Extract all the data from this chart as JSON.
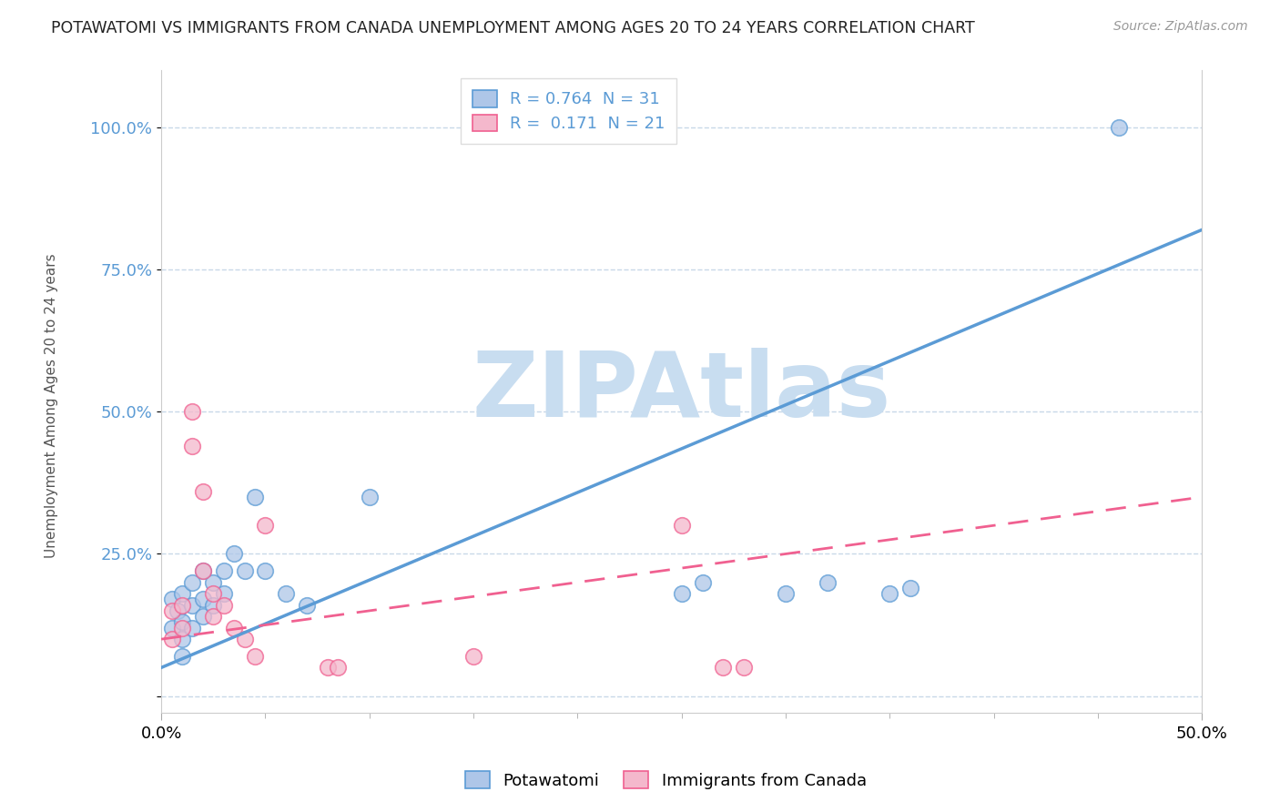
{
  "title": "POTAWATOMI VS IMMIGRANTS FROM CANADA UNEMPLOYMENT AMONG AGES 20 TO 24 YEARS CORRELATION CHART",
  "source": "Source: ZipAtlas.com",
  "ylabel": "Unemployment Among Ages 20 to 24 years",
  "xlim": [
    0.0,
    0.5
  ],
  "ylim": [
    -0.03,
    1.1
  ],
  "yticks": [
    0.0,
    0.25,
    0.5,
    0.75,
    1.0
  ],
  "ytick_labels": [
    "",
    "25.0%",
    "50.0%",
    "75.0%",
    "100.0%"
  ],
  "xticks": [
    0.0,
    0.5
  ],
  "xtick_labels": [
    "0.0%",
    "50.0%"
  ],
  "watermark": "ZIPAtlas",
  "legend_line1": "R = 0.764  N = 31",
  "legend_line2": "R =  0.171  N = 21",
  "blue_scatter": [
    [
      0.005,
      0.17
    ],
    [
      0.005,
      0.12
    ],
    [
      0.008,
      0.15
    ],
    [
      0.01,
      0.18
    ],
    [
      0.01,
      0.13
    ],
    [
      0.01,
      0.1
    ],
    [
      0.01,
      0.07
    ],
    [
      0.015,
      0.2
    ],
    [
      0.015,
      0.16
    ],
    [
      0.015,
      0.12
    ],
    [
      0.02,
      0.22
    ],
    [
      0.02,
      0.17
    ],
    [
      0.02,
      0.14
    ],
    [
      0.025,
      0.2
    ],
    [
      0.025,
      0.16
    ],
    [
      0.03,
      0.22
    ],
    [
      0.03,
      0.18
    ],
    [
      0.035,
      0.25
    ],
    [
      0.04,
      0.22
    ],
    [
      0.045,
      0.35
    ],
    [
      0.05,
      0.22
    ],
    [
      0.06,
      0.18
    ],
    [
      0.07,
      0.16
    ],
    [
      0.1,
      0.35
    ],
    [
      0.25,
      0.18
    ],
    [
      0.26,
      0.2
    ],
    [
      0.3,
      0.18
    ],
    [
      0.32,
      0.2
    ],
    [
      0.35,
      0.18
    ],
    [
      0.36,
      0.19
    ],
    [
      0.46,
      1.0
    ]
  ],
  "pink_scatter": [
    [
      0.005,
      0.15
    ],
    [
      0.005,
      0.1
    ],
    [
      0.01,
      0.16
    ],
    [
      0.01,
      0.12
    ],
    [
      0.015,
      0.5
    ],
    [
      0.015,
      0.44
    ],
    [
      0.02,
      0.36
    ],
    [
      0.02,
      0.22
    ],
    [
      0.025,
      0.18
    ],
    [
      0.025,
      0.14
    ],
    [
      0.03,
      0.16
    ],
    [
      0.035,
      0.12
    ],
    [
      0.04,
      0.1
    ],
    [
      0.045,
      0.07
    ],
    [
      0.05,
      0.3
    ],
    [
      0.08,
      0.05
    ],
    [
      0.085,
      0.05
    ],
    [
      0.15,
      0.07
    ],
    [
      0.25,
      0.3
    ],
    [
      0.27,
      0.05
    ],
    [
      0.28,
      0.05
    ]
  ],
  "blue_line_x": [
    0.0,
    0.5
  ],
  "blue_line_y": [
    0.05,
    0.82
  ],
  "pink_line_x": [
    0.0,
    0.5
  ],
  "pink_line_y": [
    0.1,
    0.35
  ],
  "blue_color": "#5b9bd5",
  "pink_color": "#f06090",
  "blue_scatter_color": "#aec6e8",
  "pink_scatter_color": "#f4b8cc",
  "title_color": "#222222",
  "axis_label_color": "#5b9bd5",
  "grid_color": "#c8d8e8",
  "watermark_color": "#c8ddf0",
  "legend_text_color": "#5b9bd5",
  "legend_n_color": "#e05050"
}
